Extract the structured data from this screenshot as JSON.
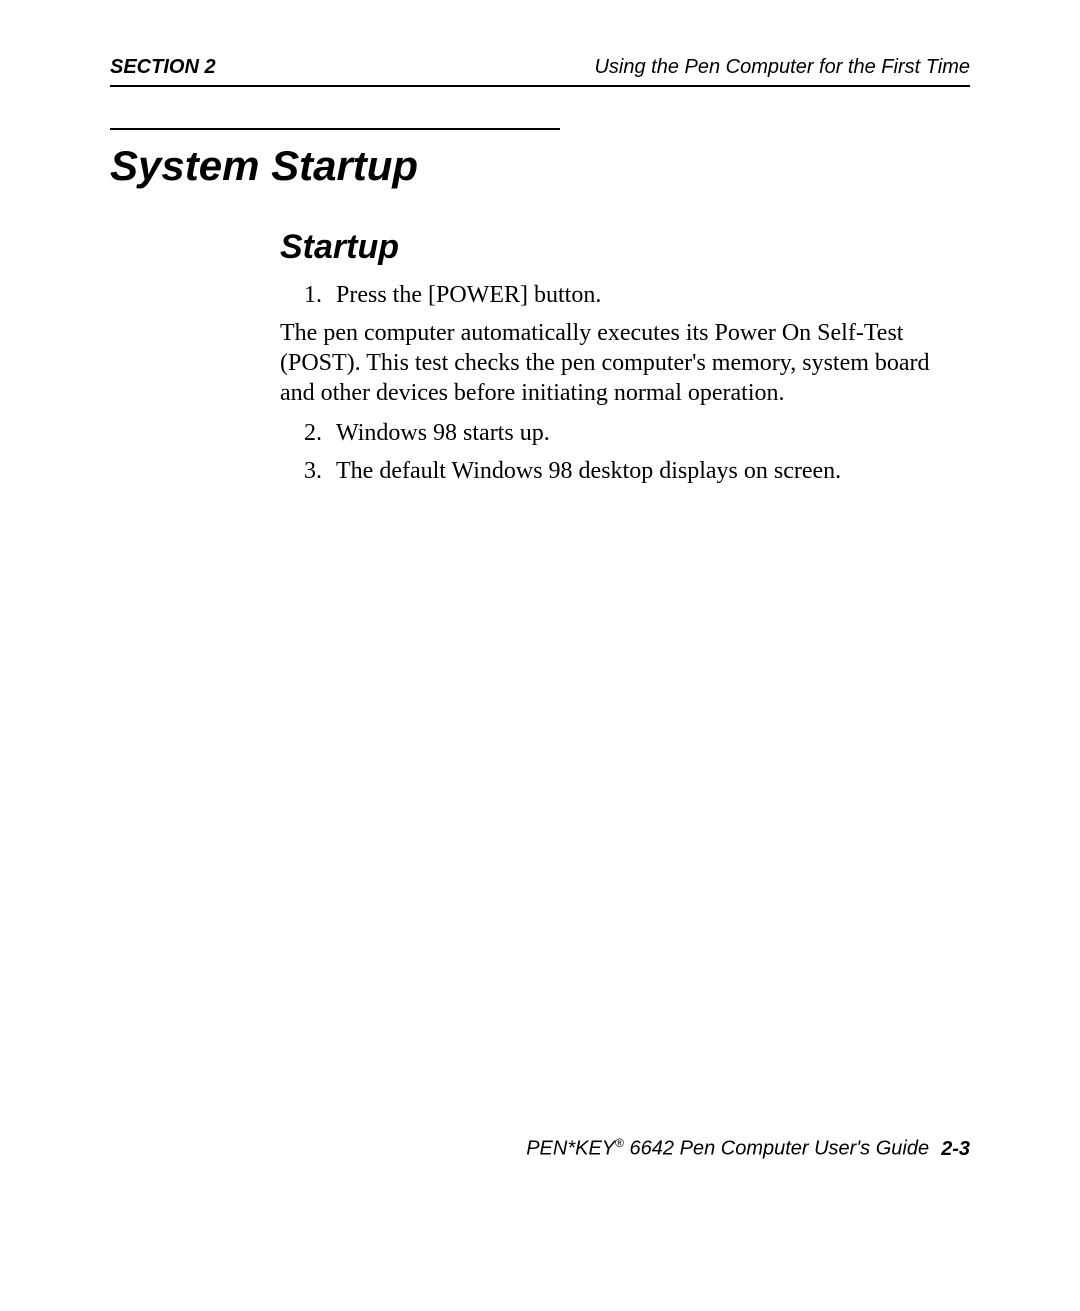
{
  "header": {
    "left": "SECTION 2",
    "right": "Using the Pen Computer for the First Time"
  },
  "h1": "System Startup",
  "h2": "Startup",
  "steps": {
    "n1": "1.",
    "t1": "Press the [POWER] button.",
    "para": "The pen computer automatically executes its Power On Self-Test (POST).  This test checks the pen computer's memory, system board and other devices before initiating normal operation.",
    "n2": "2.",
    "t2": "Windows 98 starts up.",
    "n3": "3.",
    "t3": "The default Windows 98 desktop displays on screen."
  },
  "footer": {
    "product_prefix": "PEN*KEY",
    "reg": "®",
    "product_suffix": " 6642 Pen Computer User's Guide",
    "page": "2-3"
  }
}
